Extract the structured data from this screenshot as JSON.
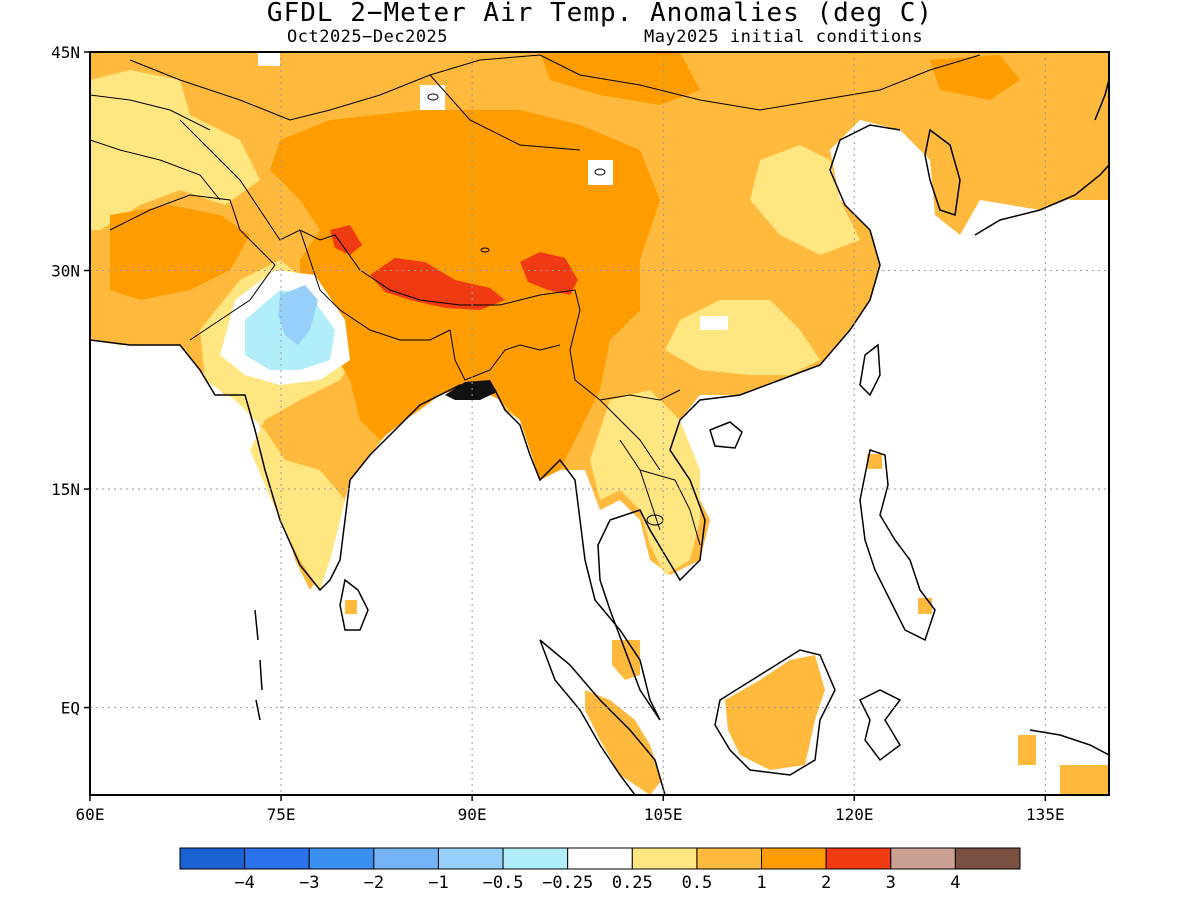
{
  "title": "GFDL 2−Meter Air Temp. Anomalies (deg C)",
  "subtitle_period": "Oct2025−Dec2025",
  "subtitle_init": "May2025 initial conditions",
  "map": {
    "lon_range": [
      60,
      140
    ],
    "lat_range": [
      -6,
      45
    ],
    "grid_lines": true,
    "x_ticks": [
      {
        "lon": 60,
        "label": "60E"
      },
      {
        "lon": 75,
        "label": "75E"
      },
      {
        "lon": 90,
        "label": "90E"
      },
      {
        "lon": 105,
        "label": "105E"
      },
      {
        "lon": 120,
        "label": "120E"
      },
      {
        "lon": 135,
        "label": "135E"
      }
    ],
    "y_ticks": [
      {
        "lat": 45,
        "label": "45N"
      },
      {
        "lat": 30,
        "label": "30N"
      },
      {
        "lat": 15,
        "label": "15N"
      },
      {
        "lat": 0,
        "label": "EQ"
      }
    ]
  },
  "legend": {
    "colors": [
      "#1a62d4",
      "#2a72ec",
      "#3a90f0",
      "#74b4f6",
      "#96d0fa",
      "#b2eefa",
      "#ffffff",
      "#ffe680",
      "#ffb93c",
      "#ff9c00",
      "#f03a12",
      "#caa092",
      "#7a5040"
    ],
    "labels": [
      "−4",
      "−3",
      "−2",
      "−1",
      "−0.5",
      "−0.25",
      "0.25",
      "0.5",
      "1",
      "2",
      "3",
      "4"
    ]
  },
  "chart_data": {
    "type": "heatmap",
    "variable": "2-meter air temperature anomaly",
    "units": "deg C",
    "regions": [
      {
        "lon": [
          60,
          140
        ],
        "lat": [
          20,
          45
        ],
        "band": "0.5 to 1"
      },
      {
        "lon": [
          80,
          105
        ],
        "lat": [
          20,
          38
        ],
        "band": "1 to 2"
      },
      {
        "lon": [
          84,
          97
        ],
        "lat": [
          28,
          30
        ],
        "band": "2 to 3"
      },
      {
        "lon": [
          72,
          77
        ],
        "lat": [
          25,
          30
        ],
        "band": "-1 to -0.5"
      },
      {
        "lon": [
          110,
          122
        ],
        "lat": [
          -4,
          3
        ],
        "band": "0.5 to 1"
      }
    ]
  }
}
